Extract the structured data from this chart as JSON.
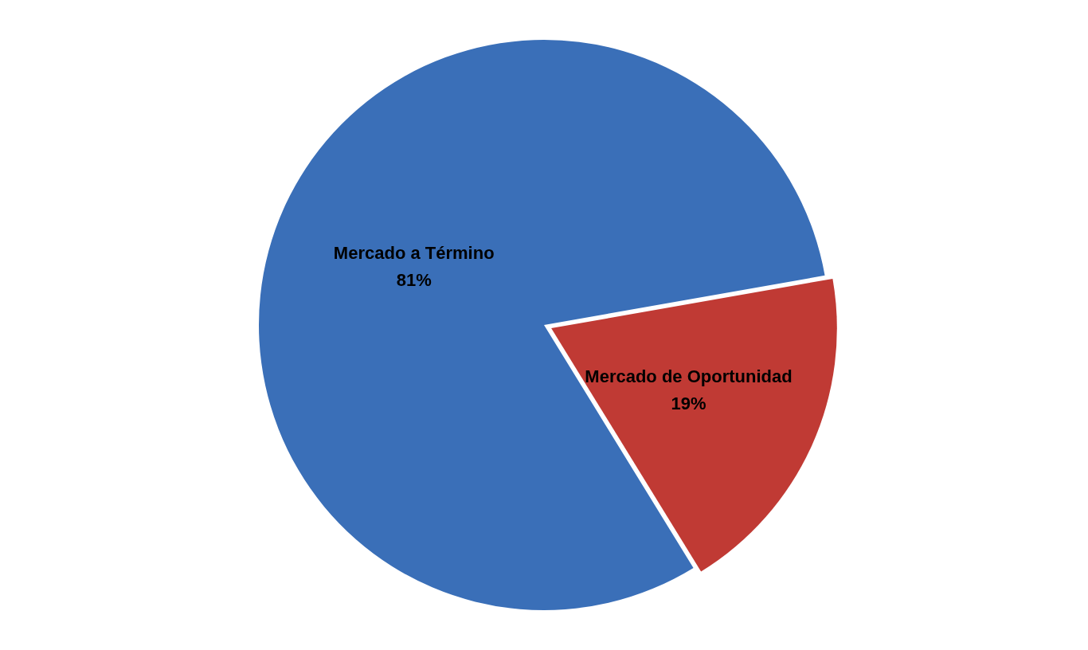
{
  "chart_data": {
    "type": "pie",
    "categories": [
      "Mercado a Término",
      "Mercado de Oportunidad"
    ],
    "values": [
      81,
      19
    ],
    "colors": [
      "#3a6fb8",
      "#c03a34"
    ],
    "value_labels": [
      "81%",
      "19%"
    ],
    "legend": false
  }
}
